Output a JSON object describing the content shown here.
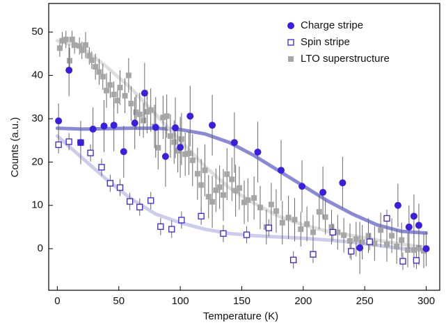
{
  "chart_data": {
    "type": "scatter",
    "x_label": "Temperature (K)",
    "y_label": "Counts (a.u.)",
    "xlim": [
      -7,
      311
    ],
    "ylim": [
      -9.6,
      56.6
    ],
    "xticks": [
      0,
      50,
      100,
      150,
      200,
      250,
      300
    ],
    "yticks": [
      0,
      10,
      20,
      30,
      40,
      50
    ],
    "legend": "upper right",
    "series": [
      {
        "name": "Charge stripe",
        "color": "#3b1fe0",
        "marker": "circle",
        "x": [
          1,
          9.5,
          19,
          29,
          38,
          46,
          54,
          63,
          71,
          80,
          88,
          96,
          100,
          108,
          126,
          144,
          163,
          182,
          199,
          216,
          232,
          246,
          277,
          286,
          290,
          294,
          300
        ],
        "values": [
          29.5,
          41.2,
          24.5,
          27.6,
          28.3,
          28.5,
          22.4,
          29,
          35.9,
          28,
          21.3,
          27.9,
          23.4,
          30.6,
          28.5,
          24.5,
          22.3,
          18.1,
          14.4,
          13,
          15.2,
          0.2,
          10,
          5,
          7.5,
          5.4,
          0
        ],
        "errors": [
          4,
          6,
          5,
          5,
          6,
          6,
          6,
          6,
          7,
          7,
          7,
          7,
          7,
          7,
          7,
          7,
          7,
          7,
          6,
          6,
          6,
          6,
          5,
          5,
          5,
          5,
          4
        ]
      },
      {
        "name": "Spin stripe",
        "color": "#3b1fe0",
        "marker": "open-square",
        "x": [
          1,
          9.5,
          19,
          27,
          36,
          43,
          51,
          59,
          67,
          76,
          84,
          93,
          101,
          117,
          135,
          154,
          172,
          192,
          208,
          224,
          239,
          254,
          268,
          281,
          292
        ],
        "values": [
          24,
          24.7,
          24.5,
          22.1,
          18.8,
          15.1,
          14.1,
          10.9,
          9.6,
          11.1,
          5.1,
          4.5,
          6.6,
          7.5,
          3.5,
          3.2,
          4.8,
          -2.6,
          -1.3,
          3.8,
          -0.6,
          1.6,
          7,
          -2.9,
          -2.7
        ],
        "errors": [
          2,
          2,
          2,
          2,
          2,
          2,
          2,
          2,
          2,
          2,
          2,
          2,
          2,
          2,
          2,
          2,
          2,
          2,
          2,
          2,
          2,
          2,
          2,
          2,
          2
        ]
      },
      {
        "name": "LTO superstructure",
        "color": "#a6a6a6",
        "marker": "square",
        "x": [
          2,
          4,
          7,
          10,
          12,
          14,
          18,
          20,
          23,
          26,
          28,
          31,
          34,
          37,
          40,
          43,
          46,
          49,
          51,
          55,
          58,
          60,
          64,
          67,
          70,
          73,
          76,
          79,
          82,
          86,
          89,
          92,
          95,
          98,
          101,
          104,
          107,
          110,
          114,
          117,
          120,
          123,
          126,
          129,
          132,
          135,
          138,
          142,
          145,
          148,
          152,
          155,
          160,
          165,
          170,
          174,
          178,
          183,
          188,
          193,
          198,
          203,
          208,
          213,
          218,
          223,
          228,
          233,
          238,
          243,
          248,
          253,
          258,
          263,
          268,
          272,
          276,
          280,
          285,
          290,
          294,
          298
        ],
        "values": [
          46.3,
          48,
          48.3,
          43.4,
          48.3,
          47,
          46.8,
          45.8,
          47,
          44.5,
          43.5,
          42,
          40.8,
          39.7,
          36.5,
          37.8,
          35.6,
          34.2,
          37.2,
          35.3,
          40,
          33.5,
          31.5,
          31,
          29.6,
          31.6,
          32,
          28.2,
          23.3,
          30.3,
          30.6,
          26,
          24.6,
          22.6,
          25.3,
          21.8,
          22,
          20.4,
          17.3,
          14.7,
          18.1,
          12,
          10.8,
          13.5,
          14.2,
          12.4,
          17.2,
          16,
          13.4,
          14,
          10.7,
          11.2,
          11.7,
          9.5,
          5,
          10.2,
          8.7,
          6,
          7.2,
          6.7,
          4.5,
          5.7,
          3.8,
          8.5,
          7.3,
          5,
          3.8,
          3.1,
          1.8,
          2.2,
          1.5,
          3,
          1.2,
          4.3,
          1,
          3,
          0.5,
          2,
          -0.3,
          -0.3,
          0.2,
          -0.5
        ],
        "errors": [
          2,
          2,
          2,
          3,
          2,
          2,
          2,
          2,
          3,
          2,
          2,
          3,
          3,
          3,
          4,
          3,
          3,
          3,
          4,
          4,
          4,
          4,
          4,
          5,
          4,
          5,
          5,
          5,
          5,
          5,
          5,
          5,
          5,
          5,
          6,
          5,
          5,
          6,
          6,
          6,
          6,
          5,
          6,
          5,
          5,
          6,
          6,
          5,
          6,
          5,
          5,
          5,
          5,
          5,
          4,
          5,
          5,
          5,
          5,
          5,
          4,
          4,
          4,
          4,
          4,
          4,
          4,
          4,
          4,
          4,
          4,
          4,
          4,
          4,
          4,
          4,
          4,
          4,
          4,
          4,
          4,
          4
        ]
      }
    ],
    "fits": [
      {
        "color": "#7c7cd4",
        "x": [
          0,
          20,
          40,
          60,
          80,
          100,
          120,
          140,
          160,
          180,
          200,
          220,
          240,
          260,
          280,
          300
        ],
        "values": [
          27.8,
          27.6,
          27.7,
          27.8,
          27.8,
          27.5,
          26.5,
          24.5,
          21.5,
          18,
          14.5,
          11,
          8,
          5.5,
          4,
          3.6
        ]
      },
      {
        "color": "#c6c6ea",
        "x": [
          0,
          20,
          40,
          60,
          80,
          100,
          120,
          140,
          160,
          180,
          200,
          220,
          240,
          260,
          280,
          300
        ],
        "values": [
          26,
          21,
          16,
          11.5,
          8,
          6,
          4.5,
          3.5,
          3,
          2.7,
          2.4,
          2,
          1.5,
          0.8,
          0,
          -0.5
        ]
      },
      {
        "color": "#dadada",
        "x": [
          0,
          20,
          40,
          60,
          80,
          100,
          120,
          140,
          160,
          180,
          200,
          220,
          240,
          260,
          280,
          300
        ],
        "values": [
          48,
          46.5,
          42,
          37,
          31,
          25,
          19,
          14,
          10.5,
          7.5,
          5.5,
          4,
          3,
          2,
          1,
          0.3
        ]
      }
    ]
  }
}
